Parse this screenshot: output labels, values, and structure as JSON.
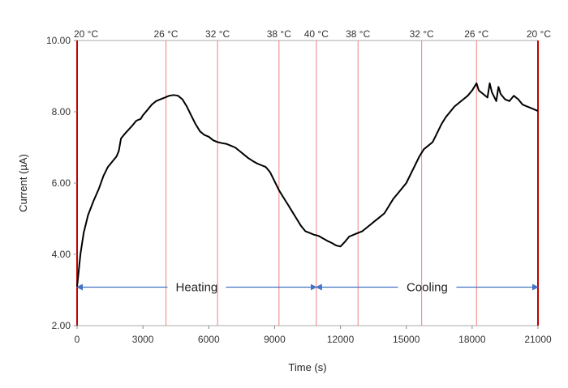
{
  "chart_data": {
    "type": "line",
    "xlabel": "Time (s)",
    "ylabel": "Current (µA)",
    "xlim": [
      0,
      21000
    ],
    "ylim": [
      2.0,
      10.0
    ],
    "x_ticks": [
      "0",
      "3000",
      "6000",
      "9000",
      "12000",
      "15000",
      "18000",
      "21000"
    ],
    "y_ticks": [
      "2.00",
      "4.00",
      "6.00",
      "8.00",
      "10.00"
    ],
    "grid": false,
    "colors": {
      "series": "#000000",
      "markers": "#f08080",
      "arrows": "#4472c4",
      "frame_edges": "#c00000"
    },
    "temperature_markers": [
      {
        "time": 0,
        "label": "20 °C"
      },
      {
        "time": 4050,
        "label": "26 °C"
      },
      {
        "time": 6400,
        "label": "32 °C"
      },
      {
        "time": 9200,
        "label": "38 °C"
      },
      {
        "time": 10900,
        "label": "40 °C"
      },
      {
        "time": 12800,
        "label": "38 °C"
      },
      {
        "time": 15700,
        "label": "32 °C"
      },
      {
        "time": 18200,
        "label": "26 °C"
      },
      {
        "time": 21000,
        "label": "20 °C"
      }
    ],
    "phases": [
      {
        "label": "Heating",
        "start": 0,
        "end": 10900,
        "y": 3.08
      },
      {
        "label": "Cooling",
        "start": 10900,
        "end": 21000,
        "y": 3.08
      }
    ],
    "series": [
      {
        "x": [
          0,
          50,
          150,
          300,
          500,
          750,
          1000,
          1200,
          1400,
          1600,
          1800,
          1900,
          2000,
          2200,
          2500,
          2700,
          2900,
          3000,
          3200,
          3400,
          3600,
          3800,
          4000,
          4200,
          4400,
          4600,
          4800,
          5000,
          5200,
          5400,
          5600,
          5800,
          6000,
          6200,
          6400,
          6600,
          6800,
          7000,
          7200,
          7400,
          7600,
          7800,
          8000,
          8200,
          8400,
          8600,
          8800,
          9000,
          9200,
          9400,
          9600,
          9800,
          10000,
          10200,
          10400,
          10600,
          10800,
          11000,
          11200,
          11400,
          11600,
          11800,
          12000,
          12200,
          12400,
          12600,
          12800,
          13000,
          13200,
          13400,
          13600,
          13800,
          14000,
          14200,
          14400,
          14600,
          14800,
          15000,
          15200,
          15400,
          15600,
          15800,
          16000,
          16200,
          16400,
          16600,
          16800,
          17000,
          17200,
          17400,
          17600,
          17800,
          18000,
          18100,
          18200,
          18300,
          18500,
          18700,
          18800,
          18900,
          19100,
          19200,
          19300,
          19500,
          19700,
          19900,
          20100,
          20300,
          20500,
          20700,
          21000
        ],
        "y": [
          3.1,
          3.4,
          4.0,
          4.6,
          5.1,
          5.5,
          5.85,
          6.2,
          6.45,
          6.6,
          6.75,
          6.9,
          7.25,
          7.4,
          7.6,
          7.75,
          7.8,
          7.9,
          8.05,
          8.2,
          8.3,
          8.35,
          8.4,
          8.45,
          8.47,
          8.45,
          8.35,
          8.15,
          7.9,
          7.65,
          7.45,
          7.35,
          7.3,
          7.2,
          7.15,
          7.12,
          7.1,
          7.05,
          7.0,
          6.9,
          6.8,
          6.7,
          6.62,
          6.55,
          6.5,
          6.45,
          6.3,
          6.05,
          5.8,
          5.6,
          5.4,
          5.2,
          5.0,
          4.8,
          4.65,
          4.6,
          4.55,
          4.52,
          4.45,
          4.38,
          4.32,
          4.25,
          4.22,
          4.35,
          4.5,
          4.55,
          4.6,
          4.65,
          4.75,
          4.85,
          4.95,
          5.05,
          5.15,
          5.35,
          5.55,
          5.7,
          5.85,
          6.0,
          6.25,
          6.5,
          6.75,
          6.95,
          7.05,
          7.15,
          7.4,
          7.65,
          7.85,
          8.0,
          8.15,
          8.25,
          8.35,
          8.45,
          8.6,
          8.7,
          8.8,
          8.6,
          8.5,
          8.4,
          8.8,
          8.55,
          8.3,
          8.7,
          8.5,
          8.35,
          8.3,
          8.45,
          8.35,
          8.2,
          8.15,
          8.1,
          8.02
        ]
      }
    ]
  }
}
